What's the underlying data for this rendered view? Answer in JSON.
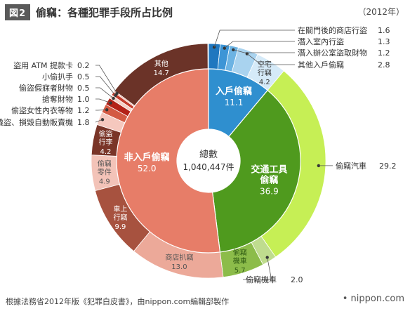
{
  "header": {
    "figure_badge": "図2",
    "title": "偷竊：各種犯罪手段所占比例",
    "year": "（2012年）"
  },
  "footer": {
    "source": "根據法務省2012年版《犯罪白皮書》，由nippon.com編輯部製作",
    "brand": "• nippon.com"
  },
  "chart_data": {
    "type": "pie",
    "variant": "sunburst-donut",
    "title": "偷竊：各種犯罪手段所占比例",
    "year": "2012年",
    "center_label": "總數",
    "center_value": "1,040,447件",
    "unit": "%",
    "inner_ring": [
      {
        "name": "入戶偷竊",
        "value": 11.1,
        "color": "#2f8fcf"
      },
      {
        "name": "交通工具偷竊",
        "value": 36.9,
        "color": "#4f9a1e"
      },
      {
        "name": "非入戶偷竊",
        "value": 52.0,
        "color": "#e77d68"
      }
    ],
    "outer_ring": [
      {
        "name": "在關門後的商店行盜",
        "value": 1.6,
        "parent": "入戶偷竊",
        "color": "#1f77bf"
      },
      {
        "name": "潛入室內行盜",
        "value": 1.3,
        "parent": "入戶偷竊",
        "color": "#3d95d6"
      },
      {
        "name": "潛入辦公室盜取財物",
        "value": 1.2,
        "parent": "入戶偷竊",
        "color": "#6cb3e3"
      },
      {
        "name": "其他入戶偷竊",
        "value": 2.8,
        "parent": "入戶偷竊",
        "color": "#a9d3ef"
      },
      {
        "name": "空宅行竊",
        "value": 4.2,
        "parent": "入戶偷竊",
        "color": "#d5eaf8"
      },
      {
        "name": "偷竊汽車",
        "value": 29.2,
        "parent": "交通工具偷竊",
        "color": "#c6ef55"
      },
      {
        "name": "偷竊機車",
        "value": 2.0,
        "parent": "交通工具偷竊",
        "color": "#bfdc8e"
      },
      {
        "name": "偷竊機車",
        "value": 5.7,
        "parent": "交通工具偷竊",
        "color": "#8cbc4a"
      },
      {
        "name": "商店扒竊",
        "value": 13.0,
        "parent": "非入戶偷竊",
        "color": "#eca999"
      },
      {
        "name": "車上行竊",
        "value": 9.9,
        "parent": "非入戶偷竊",
        "color": "#a7523f"
      },
      {
        "name": "偷竊零件",
        "value": 4.9,
        "parent": "非入戶偷竊",
        "color": "#f3c3b8"
      },
      {
        "name": "偷盜行李",
        "value": 4.2,
        "parent": "非入戶偷竊",
        "color": "#7a3528"
      },
      {
        "name": "撬盜、損毀自動販賣機",
        "value": 1.8,
        "parent": "非入戶偷竊",
        "color": "#f5c8be"
      },
      {
        "name": "偷盜女性內衣等物",
        "value": 1.2,
        "parent": "非入戶偷竊",
        "color": "#d35a43"
      },
      {
        "name": "搶奪財物",
        "value": 1.0,
        "parent": "非入戶偷竊",
        "color": "#b32218"
      },
      {
        "name": "偷盜假寐者財物",
        "value": 0.5,
        "parent": "非入戶偷竊",
        "color": "#f4d0c6"
      },
      {
        "name": "小偷扒手",
        "value": 0.5,
        "parent": "非入戶偷竊",
        "color": "#c43c2c"
      },
      {
        "name": "盜用 ATM 提款卡",
        "value": 0.2,
        "parent": "非入戶偷竊",
        "color": "#eeb0a2"
      },
      {
        "name": "其他",
        "value": 14.7,
        "parent": "非入戶偷竊",
        "color": "#6b3328"
      }
    ],
    "inner_labels": [
      {
        "lines": [
          "入戶偷竊"
        ],
        "value": "11.1",
        "index": 0,
        "color": "#ffffff"
      },
      {
        "lines": [
          "交通工具",
          "偷竊"
        ],
        "value": "36.9",
        "index": 1,
        "color": "#ffffff"
      },
      {
        "lines": [
          "非入戶偷竊"
        ],
        "value": "52.0",
        "index": 2,
        "color": "#ffffff"
      }
    ],
    "outer_labels_inside": [
      {
        "lines": [
          "空宅",
          "行竊"
        ],
        "value": "4.2",
        "index": 4,
        "color": "#333333"
      },
      {
        "lines": [
          "偷竊",
          "機車"
        ],
        "value": "5.7",
        "index": 7,
        "color": "#2d5a12"
      },
      {
        "lines": [
          "商店扒竊"
        ],
        "value": "13.0",
        "index": 8,
        "color": "#555555"
      },
      {
        "lines": [
          "車上",
          "行竊"
        ],
        "value": "9.9",
        "index": 9,
        "color": "#ffffff"
      },
      {
        "lines": [
          "偷竊",
          "零件"
        ],
        "value": "4.9",
        "index": 10,
        "color": "#555555"
      },
      {
        "lines": [
          "偷盜",
          "行李"
        ],
        "value": "4.2",
        "index": 11,
        "color": "#ffffff"
      },
      {
        "lines": [
          "其他"
        ],
        "value": "14.7",
        "index": 18,
        "color": "#ffffff"
      }
    ],
    "callouts_right": [
      {
        "name": "在關門後的商店行盜",
        "value": "1.6",
        "index": 0
      },
      {
        "name": "潛入室內行盜",
        "value": "1.3",
        "index": 1
      },
      {
        "name": "潛入辦公室盜取財物",
        "value": "1.2",
        "index": 2
      },
      {
        "name": "其他入戶偷竊",
        "value": "2.8",
        "index": 3
      },
      {
        "name": "偷竊汽車",
        "value": "29.2",
        "index": 5
      },
      {
        "name": "偷竊機車",
        "value": "2.0",
        "index": 6
      }
    ],
    "callouts_left": [
      {
        "name": "盜用 ATM 提款卡",
        "value": "0.2",
        "index": 17
      },
      {
        "name": "小偷扒手",
        "value": "0.5",
        "index": 16
      },
      {
        "name": "偷盜假寐者財物",
        "value": "0.5",
        "index": 15
      },
      {
        "name": "搶奪財物",
        "value": "1.0",
        "index": 14
      },
      {
        "name": "偷盜女性內衣等物",
        "value": "1.2",
        "index": 13
      },
      {
        "name": "撬盜、損毀自動販賣機",
        "value": "1.8",
        "index": 12
      }
    ]
  }
}
